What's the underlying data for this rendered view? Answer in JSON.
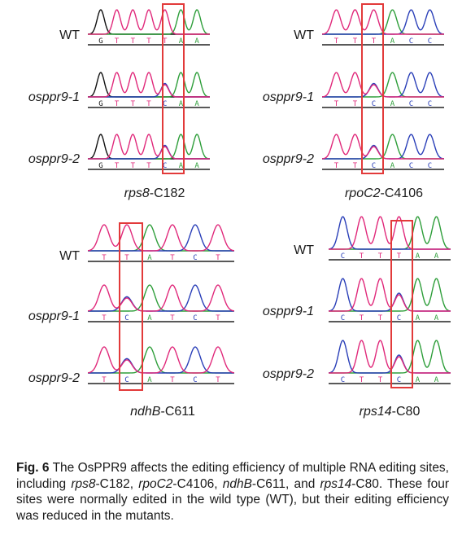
{
  "colors": {
    "A": "#2e9e3a",
    "C": "#2a3fb8",
    "G": "#111111",
    "T": "#e0287a",
    "box": "#e23a3a",
    "base_line": "#222222"
  },
  "panels": [
    {
      "id": "rps8",
      "site_gene": "rps8",
      "site_pos": "-C182",
      "samples": [
        {
          "label": "WT",
          "seq": "GTTTTAA"
        },
        {
          "label": "osppr9-1",
          "seq": "GTTTCAA"
        },
        {
          "label": "osppr9-2",
          "seq": "GTTTCAA"
        }
      ]
    },
    {
      "id": "rpoC2",
      "site_gene": "rpoC2",
      "site_pos": "-C4106",
      "samples": [
        {
          "label": "WT",
          "seq": "TTTACC"
        },
        {
          "label": "osppr9-1",
          "seq": "TTCACC"
        },
        {
          "label": "osppr9-2",
          "seq": "TTCACC"
        }
      ]
    },
    {
      "id": "ndhB",
      "site_gene": "ndhB",
      "site_pos": "-C611",
      "samples": [
        {
          "label": "WT",
          "seq": "TTATCT"
        },
        {
          "label": "osppr9-1",
          "seq": "TCATCT"
        },
        {
          "label": "osppr9-2",
          "seq": "TCATCT"
        }
      ]
    },
    {
      "id": "rps14",
      "site_gene": "rps14",
      "site_pos": "-C80",
      "samples": [
        {
          "label": "WT",
          "seq": "CTTTAA"
        },
        {
          "label": "osppr9-1",
          "seq": "CTTCAA"
        },
        {
          "label": "osppr9-2",
          "seq": "CTTCAA"
        }
      ]
    }
  ],
  "caption": {
    "fig_label": "Fig. 6",
    "t1": "  The OsPPR9 affects the editing efficiency of multiple RNA editing sites, including ",
    "g1": "rps8",
    "p1": "-C182, ",
    "g2": "rpoC2",
    "p2": "-C4106, ",
    "g3": "ndhB",
    "p3": "-C611, and ",
    "g4": "rps14",
    "p4": "-C80.",
    "t2": "  These four sites were normally edited in the wild type (WT), but their editing efficiency was reduced in the mutants."
  }
}
